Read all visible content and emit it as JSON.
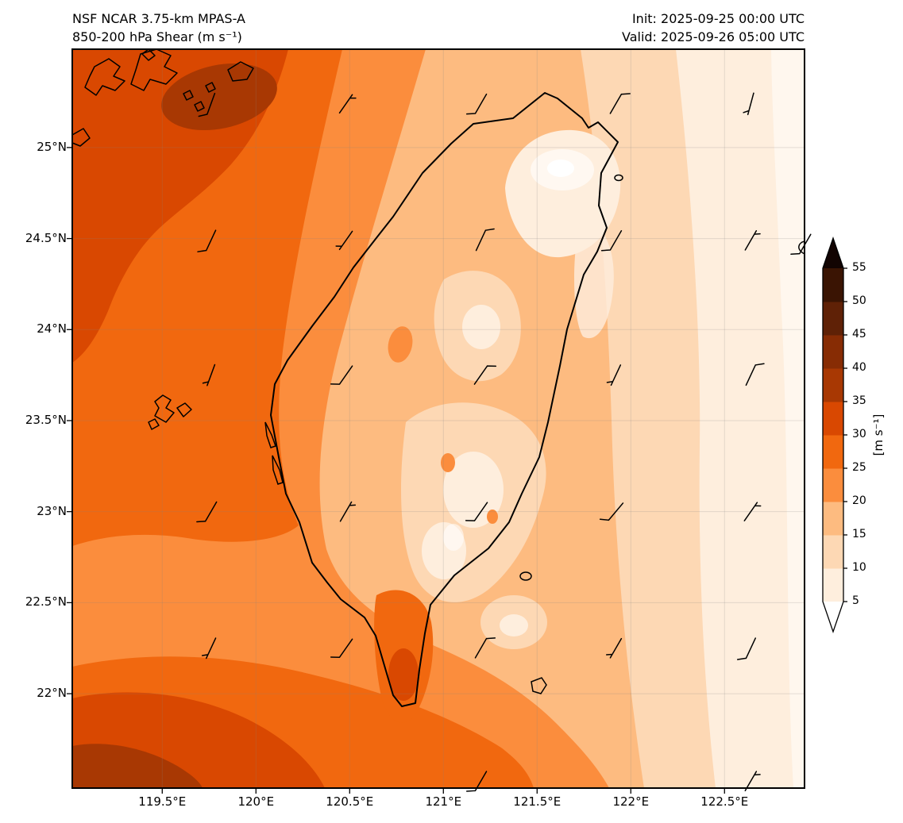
{
  "header": {
    "title_line1": "NSF NCAR 3.75-km MPAS-A",
    "title_line2": "850-200 hPa Shear (m s⁻¹)",
    "init_line": "Init: 2025-09-25 00:00 UTC",
    "valid_line": "Valid: 2025-09-26 05:00 UTC"
  },
  "chart_data": {
    "type": "heatmap",
    "title": "850-200 hPa Shear (m s⁻¹)",
    "model": "NSF NCAR 3.75-km MPAS-A",
    "init": "2025-09-25 00:00 UTC",
    "valid": "2025-09-26 05:00 UTC",
    "map_extent": {
      "lon_min": 119.02,
      "lon_max": 122.97,
      "lat_min": 21.48,
      "lat_max": 25.54
    },
    "x_ticks": [
      "119.5°E",
      "120°E",
      "120.5°E",
      "121°E",
      "121.5°E",
      "122°E",
      "122.5°E"
    ],
    "x_tick_lons": [
      119.5,
      120.0,
      120.5,
      121.0,
      121.5,
      122.0,
      122.5
    ],
    "y_ticks": [
      "25°N",
      "24.5°N",
      "24°N",
      "23.5°N",
      "23°N",
      "22.5°N",
      "22°N"
    ],
    "y_tick_lats": [
      25.0,
      24.5,
      24.0,
      23.5,
      23.0,
      22.5,
      22.0
    ],
    "colorbar": {
      "label": "[m s⁻¹]",
      "tick_labels": [
        "5",
        "10",
        "15",
        "20",
        "25",
        "30",
        "35",
        "40",
        "45",
        "50",
        "55"
      ],
      "tick_values": [
        5,
        10,
        15,
        20,
        25,
        30,
        35,
        40,
        45,
        50,
        55
      ],
      "segment_colors": [
        "#feeedd",
        "#fdd8b4",
        "#fdbb80",
        "#fb8d3d",
        "#f1680f",
        "#d94801",
        "#a83803",
        "#872c04",
        "#5f2106",
        "#3a1403"
      ],
      "under_color": "#ffffff",
      "over_color": "#120402",
      "extend": "both"
    },
    "palette": {
      "p0": "#ffffff",
      "p1": "#feeedd",
      "p2": "#fdd8b4",
      "p3": "#fdbb80",
      "p4": "#fb8d3d",
      "p5": "#f1680f",
      "p6": "#d94801",
      "p7": "#a83803",
      "p8": "#872c04",
      "p9": "#5f2106",
      "p10": "#3a1403",
      "p11": "#120402"
    },
    "field_regions": [
      {
        "region": "northwest corner / SE China coast",
        "shear_ms": "30-40"
      },
      {
        "region": "Taiwan Strait west of Taiwan",
        "shear_ms": "20-30"
      },
      {
        "region": "southwest corner and band along southern edge",
        "shear_ms": "25-35"
      },
      {
        "region": "southern tip of Taiwan (local maximum)",
        "shear_ms": "30-35"
      },
      {
        "region": "western coastal plain of Taiwan",
        "shear_ms": "15-25"
      },
      {
        "region": "central and southern Taiwan interior",
        "shear_ms": "5-15"
      },
      {
        "region": "northeast Taiwan coast (local minimum, white patch)",
        "shear_ms": "<5-10"
      },
      {
        "region": "ocean east of Taiwan, decreasing eastward",
        "shear_ms": "10-20"
      },
      {
        "region": "far eastern edge of domain",
        "shear_ms": "5-10"
      }
    ],
    "wind_barbs": [
      {
        "lon": 119.76,
        "lat": 25.24,
        "dir": 200,
        "kind": "full"
      },
      {
        "lon": 120.48,
        "lat": 25.24,
        "dir": 35,
        "kind": "half"
      },
      {
        "lon": 121.2,
        "lat": 25.24,
        "dir": 210,
        "kind": "full"
      },
      {
        "lon": 121.92,
        "lat": 25.24,
        "dir": 30,
        "kind": "full"
      },
      {
        "lon": 122.64,
        "lat": 25.24,
        "dir": 195,
        "kind": "half"
      },
      {
        "lon": 119.76,
        "lat": 24.49,
        "dir": 205,
        "kind": "full"
      },
      {
        "lon": 120.48,
        "lat": 24.49,
        "dir": 215,
        "kind": "half"
      },
      {
        "lon": 121.2,
        "lat": 24.49,
        "dir": 25,
        "kind": "full"
      },
      {
        "lon": 121.92,
        "lat": 24.49,
        "dir": 210,
        "kind": "full"
      },
      {
        "lon": 122.64,
        "lat": 24.49,
        "dir": 30,
        "kind": "half"
      },
      {
        "lon": 122.93,
        "lat": 24.47,
        "dir": 210,
        "kind": "full"
      },
      {
        "lon": 119.76,
        "lat": 23.75,
        "dir": 200,
        "kind": "half"
      },
      {
        "lon": 120.48,
        "lat": 23.75,
        "dir": 215,
        "kind": "full"
      },
      {
        "lon": 121.2,
        "lat": 23.75,
        "dir": 35,
        "kind": "full"
      },
      {
        "lon": 121.92,
        "lat": 23.75,
        "dir": 205,
        "kind": "half"
      },
      {
        "lon": 122.64,
        "lat": 23.75,
        "dir": 25,
        "kind": "full"
      },
      {
        "lon": 119.76,
        "lat": 23.0,
        "dir": 210,
        "kind": "full"
      },
      {
        "lon": 120.48,
        "lat": 23.0,
        "dir": 30,
        "kind": "half"
      },
      {
        "lon": 121.2,
        "lat": 23.0,
        "dir": 215,
        "kind": "full"
      },
      {
        "lon": 121.92,
        "lat": 23.0,
        "dir": 220,
        "kind": "full"
      },
      {
        "lon": 122.64,
        "lat": 23.0,
        "dir": 35,
        "kind": "half"
      },
      {
        "lon": 119.76,
        "lat": 22.25,
        "dir": 205,
        "kind": "half"
      },
      {
        "lon": 120.48,
        "lat": 22.25,
        "dir": 215,
        "kind": "full"
      },
      {
        "lon": 121.2,
        "lat": 22.25,
        "dir": 30,
        "kind": "full"
      },
      {
        "lon": 121.92,
        "lat": 22.25,
        "dir": 210,
        "kind": "half"
      },
      {
        "lon": 122.64,
        "lat": 22.25,
        "dir": 205,
        "kind": "full"
      },
      {
        "lon": 121.2,
        "lat": 21.52,
        "dir": 210,
        "kind": "full"
      },
      {
        "lon": 122.64,
        "lat": 21.52,
        "dir": 30,
        "kind": "half"
      }
    ]
  }
}
